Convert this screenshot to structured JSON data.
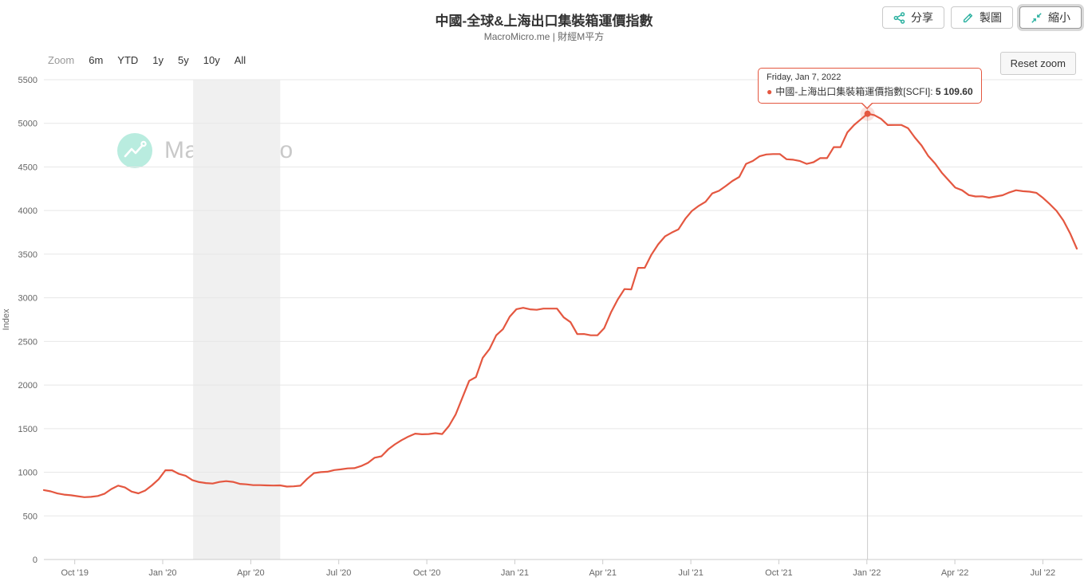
{
  "header": {
    "title": "中國-全球&上海出口集裝箱運價指數",
    "subtitle": "MacroMicro.me | 財經M平方",
    "buttons": [
      {
        "label": "分享",
        "icon": "share-icon"
      },
      {
        "label": "製圖",
        "icon": "pencil-icon"
      },
      {
        "label": "縮小",
        "icon": "compress-icon",
        "active": true
      }
    ]
  },
  "toolbar": {
    "zoom_label": "Zoom",
    "ranges": [
      "6m",
      "YTD",
      "1y",
      "5y",
      "10y",
      "All"
    ],
    "reset_label": "Reset zoom"
  },
  "watermark": {
    "text": "MacroMicro"
  },
  "tooltip": {
    "date": "Friday, Jan 7, 2022",
    "series_with_colon": "中國-上海出口集裝箱運價指數[SCFI]: ",
    "value": "5 109.60"
  },
  "colors": {
    "line": "#e45740",
    "accent_teal": "#2bb1a0",
    "grid": "#e7e7e7",
    "axis": "#cccccc",
    "band": "#f0f0f0",
    "axis_text": "#666666",
    "watermark_circle": "#b9ecdf",
    "watermark_text": "#c9c9c9"
  },
  "chart_data": {
    "type": "line",
    "title": "中國-全球&上海出口集裝箱運價指數",
    "subtitle": "MacroMicro.me | 財經M平方",
    "xlabel": "",
    "ylabel": "Index",
    "ylim": [
      0,
      5500
    ],
    "ytick_step": 500,
    "grid": "horizontal",
    "legend": "none",
    "x_range": [
      "Sep 2019",
      "Aug 2022"
    ],
    "x_tick_labels": [
      "Oct '19",
      "Jan '20",
      "Apr '20",
      "Jul '20",
      "Oct '20",
      "Jan '21",
      "Apr '21",
      "Jul '21",
      "Oct '21",
      "Jan '22",
      "Apr '22",
      "Jul '22"
    ],
    "band_color": "#f0f0f0",
    "recession_band": {
      "approx_period": "Feb 2020 - May 2020",
      "week_range": [
        22.1,
        35.0
      ]
    },
    "highlight": {
      "index": 122,
      "date": "Friday, Jan 7, 2022",
      "value": 5109.6,
      "value_label": "5 109.60"
    },
    "series": [
      {
        "name": "中國-上海出口集裝箱運價指數[SCFI]",
        "color": "#e45740",
        "frequency": "weekly",
        "weekly_values": [
          796,
          781,
          757,
          744,
          736,
          725,
          714,
          718,
          728,
          755,
          808,
          847,
          826,
          778,
          758,
          790,
          850,
          920,
          1023,
          1022,
          981,
          960,
          910,
          887,
          876,
          871,
          889,
          898,
          890,
          867,
          862,
          852,
          852,
          850,
          848,
          850,
          836,
          839,
          846,
          925,
          990,
          1001,
          1006,
          1025,
          1033,
          1044,
          1047,
          1072,
          1107,
          1167,
          1183,
          1263,
          1320,
          1369,
          1410,
          1443,
          1435,
          1438,
          1448,
          1438,
          1530,
          1664,
          1857,
          2048,
          2091,
          2312,
          2411,
          2570,
          2641,
          2783,
          2870,
          2885,
          2868,
          2862,
          2876,
          2876,
          2876,
          2776,
          2721,
          2584,
          2585,
          2570,
          2571,
          2652,
          2833,
          2979,
          3100,
          3096,
          3343,
          3344,
          3496,
          3613,
          3704,
          3748,
          3785,
          3905,
          3996,
          4054,
          4100,
          4196,
          4226,
          4281,
          4340,
          4385,
          4535,
          4568,
          4622,
          4643,
          4648,
          4648,
          4588,
          4583,
          4567,
          4535,
          4554,
          4602,
          4601,
          4727,
          4727,
          4894,
          4980,
          5046,
          5109.6,
          5094,
          5051,
          4980,
          4981,
          4981,
          4944,
          4838,
          4746,
          4625,
          4540,
          4434,
          4348,
          4263,
          4233,
          4177,
          4162,
          4163,
          4148,
          4162,
          4175,
          4208,
          4233,
          4222,
          4216,
          4204,
          4144,
          4074,
          3996,
          3887,
          3740,
          3563
        ]
      }
    ]
  }
}
